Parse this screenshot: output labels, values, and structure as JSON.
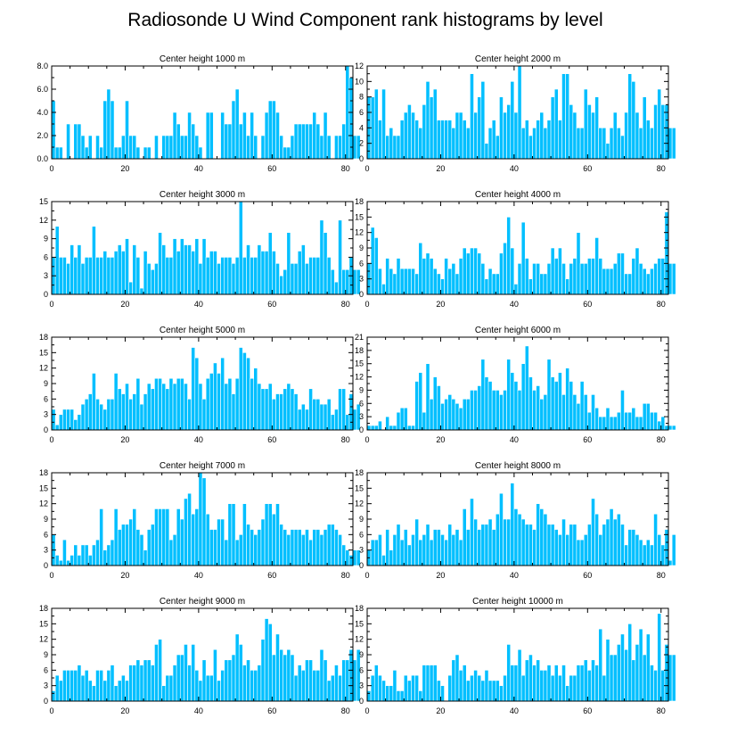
{
  "figure": {
    "title": "Radiosonde U Wind Component rank histograms by level",
    "bar_color": "#00bfff",
    "bar_edge_color": "#ffffff",
    "axis_color": "#000000"
  },
  "chart_data": [
    {
      "type": "bar",
      "title": "Center height 1000 m",
      "x_start": 0,
      "xlim": [
        0,
        82
      ],
      "ylim": [
        0,
        8
      ],
      "yticks": [
        0,
        2,
        4,
        6,
        8
      ],
      "ytick_labels": [
        "0.0",
        "2.0",
        "4.0",
        "6.0",
        "8.0"
      ],
      "xticks": [
        0,
        20,
        40,
        60,
        80
      ],
      "xtick_labels": [
        "0",
        "20",
        "40",
        "60",
        "80"
      ],
      "values": [
        5,
        1,
        1,
        0,
        3,
        0,
        3,
        3,
        2,
        1,
        2,
        0,
        2,
        1,
        5,
        6,
        5,
        1,
        1,
        2,
        5,
        2,
        2,
        1,
        0,
        1,
        1,
        0,
        2,
        0,
        2,
        2,
        2,
        4,
        3,
        2,
        2,
        4,
        3,
        2,
        1,
        0,
        4,
        4,
        0,
        0,
        4,
        3,
        3,
        5,
        6,
        3,
        4,
        2,
        4,
        2,
        0,
        2,
        4,
        5,
        5,
        4,
        2,
        1,
        1,
        2,
        3,
        3,
        3,
        3,
        3,
        4,
        3,
        2,
        4,
        2,
        0,
        2,
        2,
        3,
        8,
        7,
        2,
        2
      ]
    },
    {
      "type": "bar",
      "title": "Center height 2000 m",
      "x_start": 0,
      "xlim": [
        0,
        82
      ],
      "ylim": [
        0,
        12
      ],
      "yticks": [
        0,
        2,
        4,
        6,
        8,
        10,
        12
      ],
      "ytick_labels": [
        "0",
        "2",
        "4",
        "6",
        "8",
        "10",
        "12"
      ],
      "xticks": [
        0,
        20,
        40,
        60,
        80
      ],
      "xtick_labels": [
        "0",
        "20",
        "40",
        "60",
        "80"
      ],
      "values": [
        8,
        8,
        9,
        5,
        9,
        3,
        4,
        3,
        3,
        5,
        6,
        7,
        6,
        5,
        4,
        7,
        10,
        8,
        9,
        5,
        5,
        5,
        5,
        4,
        6,
        6,
        5,
        4,
        11,
        6,
        8,
        10,
        2,
        4,
        5,
        3,
        8,
        6,
        7,
        10,
        6,
        12,
        4,
        5,
        3,
        4,
        5,
        6,
        4,
        5,
        8,
        9,
        5,
        11,
        11,
        7,
        6,
        4,
        4,
        9,
        7,
        6,
        8,
        4,
        4,
        2,
        4,
        6,
        4,
        3,
        6,
        11,
        10,
        6,
        4,
        8,
        5,
        4,
        7,
        9,
        7,
        7,
        4,
        4
      ]
    },
    {
      "type": "bar",
      "title": "Center height 3000 m",
      "x_start": 0,
      "xlim": [
        0,
        82
      ],
      "ylim": [
        0,
        15
      ],
      "yticks": [
        0,
        3,
        6,
        9,
        12,
        15
      ],
      "ytick_labels": [
        "0",
        "3",
        "6",
        "9",
        "12",
        "15"
      ],
      "xticks": [
        0,
        20,
        40,
        60,
        80
      ],
      "xtick_labels": [
        "0",
        "20",
        "40",
        "60",
        "80"
      ],
      "values": [
        6,
        11,
        6,
        6,
        5,
        8,
        6,
        8,
        5,
        6,
        6,
        11,
        6,
        6,
        7,
        6,
        6,
        7,
        8,
        7,
        9,
        2,
        8,
        6,
        1,
        7,
        5,
        4,
        5,
        10,
        8,
        6,
        6,
        9,
        7,
        9,
        8,
        8,
        7,
        9,
        5,
        9,
        6,
        7,
        7,
        5,
        6,
        6,
        6,
        5,
        6,
        15,
        6,
        8,
        6,
        6,
        8,
        7,
        7,
        10,
        7,
        5,
        3,
        4,
        10,
        5,
        5,
        7,
        8,
        5,
        6,
        6,
        6,
        12,
        10,
        6,
        4,
        2,
        12,
        4,
        4,
        6,
        4,
        4
      ]
    },
    {
      "type": "bar",
      "title": "Center height 4000 m",
      "x_start": 0,
      "xlim": [
        0,
        82
      ],
      "ylim": [
        0,
        18
      ],
      "yticks": [
        0,
        3,
        6,
        9,
        12,
        15,
        18
      ],
      "ytick_labels": [
        "0",
        "3",
        "6",
        "9",
        "12",
        "15",
        "18"
      ],
      "xticks": [
        0,
        20,
        40,
        60,
        80
      ],
      "xtick_labels": [
        "0",
        "20",
        "40",
        "60",
        "80"
      ],
      "values": [
        6,
        13,
        11,
        5,
        2,
        7,
        5,
        4,
        7,
        5,
        5,
        5,
        5,
        4,
        10,
        7,
        8,
        7,
        5,
        4,
        3,
        7,
        5,
        6,
        4,
        7,
        9,
        8,
        9,
        9,
        8,
        6,
        3,
        5,
        4,
        4,
        8,
        10,
        15,
        9,
        2,
        6,
        14,
        7,
        3,
        6,
        6,
        4,
        4,
        6,
        9,
        7,
        9,
        6,
        3,
        6,
        7,
        12,
        6,
        6,
        7,
        7,
        11,
        7,
        5,
        5,
        5,
        6,
        8,
        8,
        4,
        4,
        7,
        9,
        6,
        5,
        4,
        5,
        6,
        7,
        7,
        16,
        6,
        6
      ]
    },
    {
      "type": "bar",
      "title": "Center height 5000 m",
      "x_start": 0,
      "xlim": [
        0,
        82
      ],
      "ylim": [
        0,
        18
      ],
      "yticks": [
        0,
        3,
        6,
        9,
        12,
        15,
        18
      ],
      "ytick_labels": [
        "0",
        "3",
        "6",
        "9",
        "12",
        "15",
        "18"
      ],
      "xticks": [
        0,
        20,
        40,
        60,
        80
      ],
      "xtick_labels": [
        "0",
        "20",
        "40",
        "60",
        "80"
      ],
      "values": [
        4,
        1,
        3,
        4,
        4,
        4,
        2,
        3,
        5,
        6,
        7,
        11,
        6,
        5,
        4,
        6,
        6,
        11,
        8,
        7,
        9,
        6,
        7,
        10,
        5,
        7,
        9,
        8,
        10,
        10,
        9,
        8,
        10,
        9,
        10,
        10,
        9,
        6,
        16,
        14,
        9,
        6,
        10,
        11,
        13,
        11,
        14,
        9,
        10,
        7,
        10,
        16,
        15,
        14,
        10,
        12,
        9,
        8,
        8,
        9,
        6,
        7,
        7,
        8,
        9,
        8,
        7,
        4,
        5,
        4,
        8,
        6,
        6,
        5,
        5,
        6,
        3,
        4,
        8,
        8,
        3,
        7,
        4,
        5
      ]
    },
    {
      "type": "bar",
      "title": "Center height 6000 m",
      "x_start": 0,
      "xlim": [
        0,
        82
      ],
      "ylim": [
        0,
        21
      ],
      "yticks": [
        0,
        3,
        6,
        9,
        12,
        15,
        18,
        21
      ],
      "ytick_labels": [
        "0",
        "3",
        "6",
        "9",
        "12",
        "15",
        "18",
        "21"
      ],
      "xticks": [
        0,
        20,
        40,
        60,
        80
      ],
      "xtick_labels": [
        "0",
        "20",
        "40",
        "60",
        "80"
      ],
      "values": [
        1,
        1,
        1,
        2,
        0,
        3,
        1,
        1,
        4,
        5,
        5,
        1,
        1,
        11,
        13,
        4,
        15,
        7,
        12,
        10,
        6,
        7,
        8,
        7,
        6,
        5,
        7,
        7,
        9,
        9,
        10,
        16,
        12,
        11,
        9,
        9,
        8,
        9,
        16,
        13,
        11,
        9,
        15,
        19,
        12,
        9,
        10,
        7,
        8,
        16,
        12,
        11,
        13,
        8,
        14,
        11,
        8,
        6,
        11,
        8,
        4,
        8,
        5,
        3,
        3,
        5,
        3,
        3,
        4,
        9,
        4,
        4,
        5,
        3,
        3,
        6,
        6,
        4,
        4,
        2,
        3,
        1,
        1,
        1
      ]
    },
    {
      "type": "bar",
      "title": "Center height 7000 m",
      "x_start": 0,
      "xlim": [
        0,
        82
      ],
      "ylim": [
        0,
        18
      ],
      "yticks": [
        0,
        3,
        6,
        9,
        12,
        15,
        18
      ],
      "ytick_labels": [
        "0",
        "3",
        "6",
        "9",
        "12",
        "15",
        "18"
      ],
      "xticks": [
        0,
        20,
        40,
        60,
        80
      ],
      "xtick_labels": [
        "0",
        "20",
        "40",
        "60",
        "80"
      ],
      "values": [
        6,
        2,
        1,
        5,
        1,
        2,
        4,
        2,
        4,
        4,
        2,
        4,
        5,
        11,
        3,
        4,
        5,
        11,
        7,
        8,
        8,
        9,
        11,
        7,
        6,
        3,
        7,
        8,
        11,
        11,
        11,
        11,
        5,
        6,
        11,
        9,
        13,
        14,
        10,
        11,
        18,
        17,
        10,
        7,
        7,
        9,
        9,
        5,
        12,
        12,
        5,
        6,
        12,
        8,
        7,
        6,
        7,
        9,
        12,
        12,
        10,
        12,
        8,
        7,
        6,
        7,
        7,
        7,
        6,
        7,
        5,
        7,
        7,
        6,
        7,
        8,
        8,
        7,
        6,
        4,
        3,
        2,
        3,
        3
      ]
    },
    {
      "type": "bar",
      "title": "Center height 8000 m",
      "x_start": 0,
      "xlim": [
        0,
        82
      ],
      "ylim": [
        0,
        18
      ],
      "yticks": [
        0,
        3,
        6,
        9,
        12,
        15,
        18
      ],
      "ytick_labels": [
        "0",
        "3",
        "6",
        "9",
        "12",
        "15",
        "18"
      ],
      "xticks": [
        0,
        20,
        40,
        60,
        80
      ],
      "xtick_labels": [
        "0",
        "20",
        "40",
        "60",
        "80"
      ],
      "values": [
        3,
        5,
        5,
        6,
        2,
        7,
        3,
        6,
        8,
        5,
        7,
        4,
        6,
        9,
        5,
        6,
        8,
        5,
        7,
        7,
        6,
        5,
        8,
        6,
        7,
        5,
        11,
        7,
        13,
        9,
        7,
        8,
        8,
        9,
        7,
        10,
        14,
        9,
        9,
        16,
        11,
        10,
        9,
        8,
        8,
        7,
        12,
        11,
        10,
        8,
        8,
        7,
        6,
        9,
        6,
        8,
        8,
        5,
        5,
        6,
        8,
        13,
        10,
        6,
        8,
        9,
        11,
        9,
        10,
        8,
        4,
        7,
        7,
        6,
        5,
        4,
        5,
        4,
        10,
        6,
        4,
        7,
        1,
        6
      ]
    },
    {
      "type": "bar",
      "title": "Center height 9000 m",
      "x_start": 0,
      "xlim": [
        0,
        82
      ],
      "ylim": [
        0,
        18
      ],
      "yticks": [
        0,
        3,
        6,
        9,
        12,
        15,
        18
      ],
      "ytick_labels": [
        "0",
        "3",
        "6",
        "9",
        "12",
        "15",
        "18"
      ],
      "xticks": [
        0,
        20,
        40,
        60,
        80
      ],
      "xtick_labels": [
        "0",
        "20",
        "40",
        "60",
        "80"
      ],
      "values": [
        2,
        5,
        4,
        6,
        6,
        6,
        6,
        7,
        5,
        6,
        4,
        3,
        6,
        6,
        4,
        6,
        7,
        3,
        4,
        5,
        4,
        7,
        7,
        8,
        7,
        8,
        8,
        7,
        11,
        12,
        3,
        5,
        5,
        7,
        9,
        9,
        11,
        7,
        11,
        6,
        4,
        8,
        5,
        5,
        10,
        4,
        6,
        8,
        8,
        9,
        13,
        11,
        7,
        8,
        6,
        6,
        7,
        12,
        16,
        15,
        9,
        13,
        10,
        9,
        10,
        9,
        5,
        7,
        6,
        8,
        8,
        6,
        6,
        10,
        8,
        4,
        5,
        7,
        5,
        8,
        8,
        10,
        8,
        10
      ]
    },
    {
      "type": "bar",
      "title": "Center height 10000 m",
      "x_start": 0,
      "xlim": [
        0,
        82
      ],
      "ylim": [
        0,
        18
      ],
      "yticks": [
        0,
        3,
        6,
        9,
        12,
        15,
        18
      ],
      "ytick_labels": [
        "0",
        "3",
        "6",
        "9",
        "12",
        "15",
        "18"
      ],
      "xticks": [
        0,
        20,
        40,
        60,
        80
      ],
      "xtick_labels": [
        "0",
        "20",
        "40",
        "60",
        "80"
      ],
      "values": [
        2,
        5,
        7,
        5,
        4,
        3,
        3,
        6,
        2,
        2,
        5,
        4,
        5,
        5,
        2,
        7,
        7,
        7,
        7,
        4,
        3,
        0,
        5,
        8,
        9,
        6,
        7,
        4,
        5,
        6,
        5,
        4,
        6,
        4,
        4,
        4,
        3,
        5,
        11,
        7,
        7,
        10,
        5,
        8,
        9,
        7,
        8,
        6,
        6,
        7,
        5,
        7,
        5,
        7,
        3,
        5,
        5,
        7,
        7,
        8,
        6,
        8,
        7,
        14,
        5,
        12,
        9,
        9,
        11,
        13,
        10,
        15,
        8,
        11,
        14,
        9,
        13,
        7,
        6,
        17,
        6,
        11,
        9,
        9
      ]
    }
  ]
}
